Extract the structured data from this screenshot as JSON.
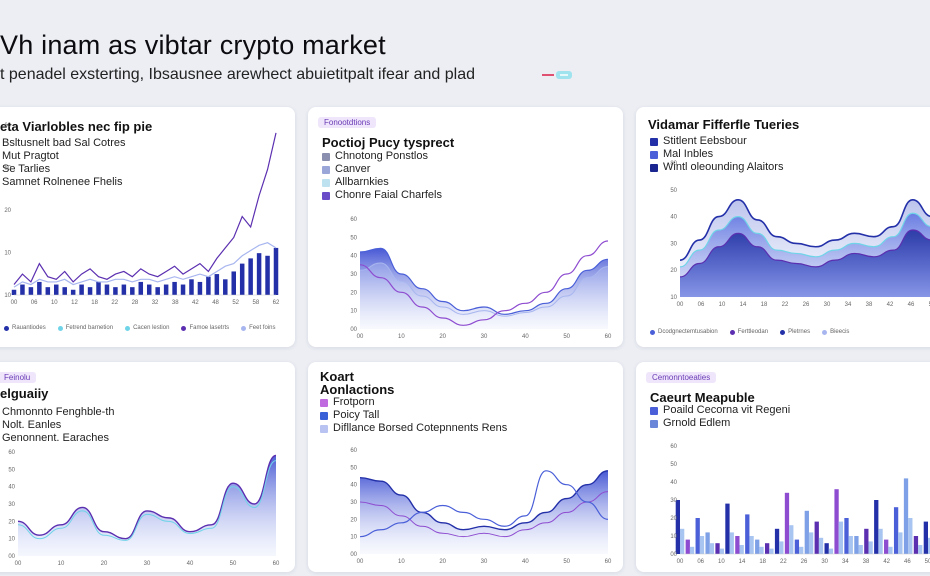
{
  "page": {
    "title": "Vh inam as vibtar crypto market",
    "subtitle": "t penadel exsterting, Ibsausnee arewhect abuietitpalt ifear and plad"
  },
  "colors": {
    "purple": "#5b2fb0",
    "navy": "#2330a8",
    "blue": "#4a5fd8",
    "light": "#a8b6ef",
    "cyan": "#6fd4e8",
    "violet": "#8e4cd0"
  },
  "cards": [
    {
      "title": "eta Viarlobles nec fip pie",
      "badge": "",
      "legend": [
        "Bsltusnelt bad Sal Cotres",
        "Mut Pragtot",
        "Se Tarlies",
        "Samnet Rolnenee Fhelis"
      ],
      "footer": [
        "Rauantiodes",
        "Fetrend barnetion",
        "Cacen lestion",
        "Famoe lasetrts",
        "Feet foins"
      ],
      "y_ticks": [
        "60",
        "50",
        "20",
        "10",
        "10"
      ],
      "x_ticks": [
        "00",
        "06",
        "10",
        "12",
        "18",
        "22",
        "28",
        "32",
        "38",
        "42",
        "48",
        "52",
        "58",
        "62"
      ]
    },
    {
      "title": "Poctioj Pucy tysprect",
      "badge": "Fonootdtions",
      "legend": [
        "Chnotong Ponstlos",
        "Canver",
        "Allbarnkies",
        "Chonre Faial Charfels"
      ],
      "footer": [],
      "y_ticks": [
        "60",
        "50",
        "40",
        "30",
        "20",
        "10",
        "00"
      ],
      "x_ticks": [
        "00",
        "10",
        "20",
        "30",
        "40",
        "50",
        "60"
      ]
    },
    {
      "title": "Vidamar Fifferfle Tueries",
      "badge": "",
      "legend": [
        "Stitlent Eebsbour",
        "Mal Inbles",
        "Wintl oleounding Alaitors"
      ],
      "footer": [
        "Dcodgnectemtusabion",
        "Ferttleodan",
        "Pletrnes",
        "Bieecis"
      ],
      "y_ticks": [
        "80",
        "50",
        "40",
        "30",
        "20",
        "10"
      ],
      "x_ticks": [
        "00",
        "06",
        "10",
        "14",
        "18",
        "22",
        "26",
        "30",
        "34",
        "38",
        "42",
        "46",
        "50"
      ]
    },
    {
      "title": "elguaiiy",
      "badge": "Feinolu",
      "legend": [
        "Chmonnto Fenghble-th",
        "Nolt. Eanles",
        "Genonnent. Earaches"
      ],
      "footer": [],
      "y_ticks": [
        "60",
        "50",
        "40",
        "30",
        "20",
        "10",
        "00"
      ],
      "x_ticks": [
        "00",
        "10",
        "20",
        "30",
        "40",
        "50",
        "60"
      ]
    },
    {
      "title": "Koart Aonlactions",
      "badge": "",
      "legend": [
        "Frotporn",
        "Poicy Tall",
        "Difllance Borsed Cotepnnents Rens"
      ],
      "footer": [],
      "y_ticks": [
        "60",
        "50",
        "40",
        "30",
        "20",
        "10",
        "00"
      ],
      "x_ticks": [
        "00",
        "10",
        "20",
        "30",
        "40",
        "50",
        "60"
      ]
    },
    {
      "title": "Caeurt Meapuble",
      "badge": "Cemonntoeaties",
      "legend": [
        "Poaild Cecorna vit Regeni",
        "Grnold Edlem"
      ],
      "footer": [],
      "y_ticks": [
        "60",
        "50",
        "40",
        "30",
        "20",
        "10",
        "00"
      ],
      "x_ticks": [
        "00",
        "06",
        "10",
        "14",
        "18",
        "22",
        "26",
        "30",
        "34",
        "38",
        "42",
        "46",
        "50"
      ]
    }
  ],
  "chart_data": [
    {
      "type": "bar",
      "title": "eta Viarlobles nec fip pie",
      "x": [
        0,
        2,
        4,
        6,
        8,
        10,
        12,
        14,
        16,
        18,
        20,
        22,
        24,
        26,
        28,
        30,
        32,
        34,
        36,
        38,
        40,
        42,
        44,
        46,
        48,
        50,
        52,
        54,
        56,
        58,
        60,
        62
      ],
      "series": [
        {
          "name": "Bsltusnelt bad Sal Cotres",
          "values": [
            2,
            4,
            3,
            5,
            3,
            4,
            3,
            2,
            4,
            3,
            5,
            4,
            3,
            4,
            3,
            5,
            4,
            3,
            4,
            5,
            4,
            6,
            5,
            7,
            8,
            6,
            9,
            12,
            14,
            16,
            15,
            18
          ]
        },
        {
          "name": "Mut Pragtot",
          "values": [
            4,
            8,
            5,
            12,
            7,
            6,
            9,
            5,
            8,
            10,
            7,
            6,
            8,
            9,
            7,
            10,
            8,
            7,
            9,
            11,
            8,
            10,
            12,
            9,
            14,
            18,
            22,
            30,
            26,
            38,
            48,
            62
          ]
        },
        {
          "name": "Se Tarlies",
          "values": [
            3,
            5,
            4,
            6,
            5,
            5,
            6,
            4,
            5,
            6,
            5,
            5,
            6,
            6,
            5,
            6,
            6,
            5,
            6,
            7,
            6,
            7,
            8,
            7,
            9,
            11,
            12,
            15,
            17,
            19,
            20,
            18
          ]
        }
      ],
      "ylim": [
        0,
        65
      ]
    },
    {
      "type": "area",
      "title": "Poctioj Pucy tysprect",
      "x": [
        0,
        5,
        10,
        15,
        20,
        25,
        30,
        35,
        40,
        45,
        50,
        55,
        60
      ],
      "series": [
        {
          "name": "Chnotong Ponstlos",
          "values": [
            42,
            44,
            30,
            22,
            15,
            10,
            12,
            8,
            10,
            14,
            22,
            32,
            38
          ]
        },
        {
          "name": "Canver",
          "values": [
            32,
            36,
            26,
            18,
            12,
            8,
            10,
            7,
            9,
            12,
            18,
            28,
            34
          ]
        },
        {
          "name": "Chonre Faial Charfels",
          "values": [
            35,
            28,
            20,
            12,
            6,
            2,
            5,
            10,
            14,
            20,
            30,
            40,
            48
          ]
        }
      ],
      "ylim": [
        0,
        60
      ]
    },
    {
      "type": "area",
      "title": "Vidamar Fifferfle Tueries",
      "x": [
        0,
        4,
        8,
        12,
        16,
        20,
        24,
        28,
        32,
        36,
        40,
        44,
        48,
        52
      ],
      "series": [
        {
          "name": "Stitlent Eebsbour",
          "values": [
            22,
            34,
            48,
            58,
            46,
            36,
            32,
            30,
            34,
            38,
            36,
            42,
            58,
            48
          ]
        },
        {
          "name": "Mal Inbles",
          "values": [
            18,
            28,
            40,
            48,
            38,
            28,
            26,
            24,
            28,
            32,
            30,
            36,
            50,
            42
          ]
        },
        {
          "name": "Wintl oleounding Alaitors",
          "values": [
            12,
            20,
            30,
            38,
            30,
            22,
            20,
            18,
            22,
            26,
            24,
            28,
            40,
            34
          ]
        }
      ],
      "ylim": [
        0,
        80
      ]
    },
    {
      "type": "area",
      "title": "elguaiiy",
      "x": [
        0,
        5,
        10,
        15,
        20,
        25,
        30,
        35,
        40,
        45,
        50,
        55,
        60
      ],
      "series": [
        {
          "name": "Chmonnto Fenghble-th",
          "values": [
            20,
            12,
            18,
            28,
            14,
            10,
            26,
            22,
            14,
            18,
            42,
            30,
            58
          ]
        },
        {
          "name": "Nolt. Eanles",
          "values": [
            18,
            10,
            16,
            26,
            12,
            9,
            24,
            20,
            13,
            16,
            40,
            28,
            55
          ]
        }
      ],
      "ylim": [
        0,
        60
      ]
    },
    {
      "type": "area",
      "title": "Koart Aonlactions",
      "x": [
        0,
        5,
        10,
        15,
        20,
        25,
        30,
        35,
        40,
        45,
        50,
        55,
        60
      ],
      "series": [
        {
          "name": "Frotporn",
          "values": [
            44,
            42,
            34,
            24,
            18,
            14,
            16,
            14,
            18,
            24,
            32,
            40,
            48
          ]
        },
        {
          "name": "Poicy Tall",
          "values": [
            30,
            28,
            22,
            16,
            12,
            10,
            12,
            10,
            14,
            18,
            24,
            30,
            36
          ]
        },
        {
          "name": "Difllance Borsed Cotepnnents Rens",
          "values": [
            10,
            14,
            18,
            24,
            28,
            24,
            20,
            16,
            22,
            48,
            40,
            30,
            20
          ]
        }
      ],
      "ylim": [
        0,
        60
      ]
    },
    {
      "type": "bar",
      "title": "Caeurt Meapuble",
      "x": [
        0,
        2,
        4,
        6,
        8,
        10,
        12,
        14,
        16,
        18,
        20,
        22,
        24,
        26,
        28,
        30,
        32,
        34,
        36,
        38,
        40,
        42,
        44,
        46,
        48,
        50
      ],
      "series": [
        {
          "name": "Poaild Cecorna vit Regeni",
          "values": [
            30,
            8,
            20,
            12,
            6,
            28,
            10,
            22,
            8,
            6,
            14,
            34,
            8,
            24,
            18,
            6,
            36,
            20,
            10,
            14,
            30,
            8,
            26,
            42,
            10,
            18
          ]
        },
        {
          "name": "Grnold Edlem",
          "values": [
            14,
            4,
            10,
            6,
            3,
            12,
            5,
            10,
            4,
            3,
            7,
            16,
            4,
            12,
            9,
            3,
            18,
            10,
            5,
            7,
            14,
            4,
            12,
            20,
            5,
            9
          ]
        }
      ],
      "ylim": [
        0,
        60
      ]
    }
  ]
}
